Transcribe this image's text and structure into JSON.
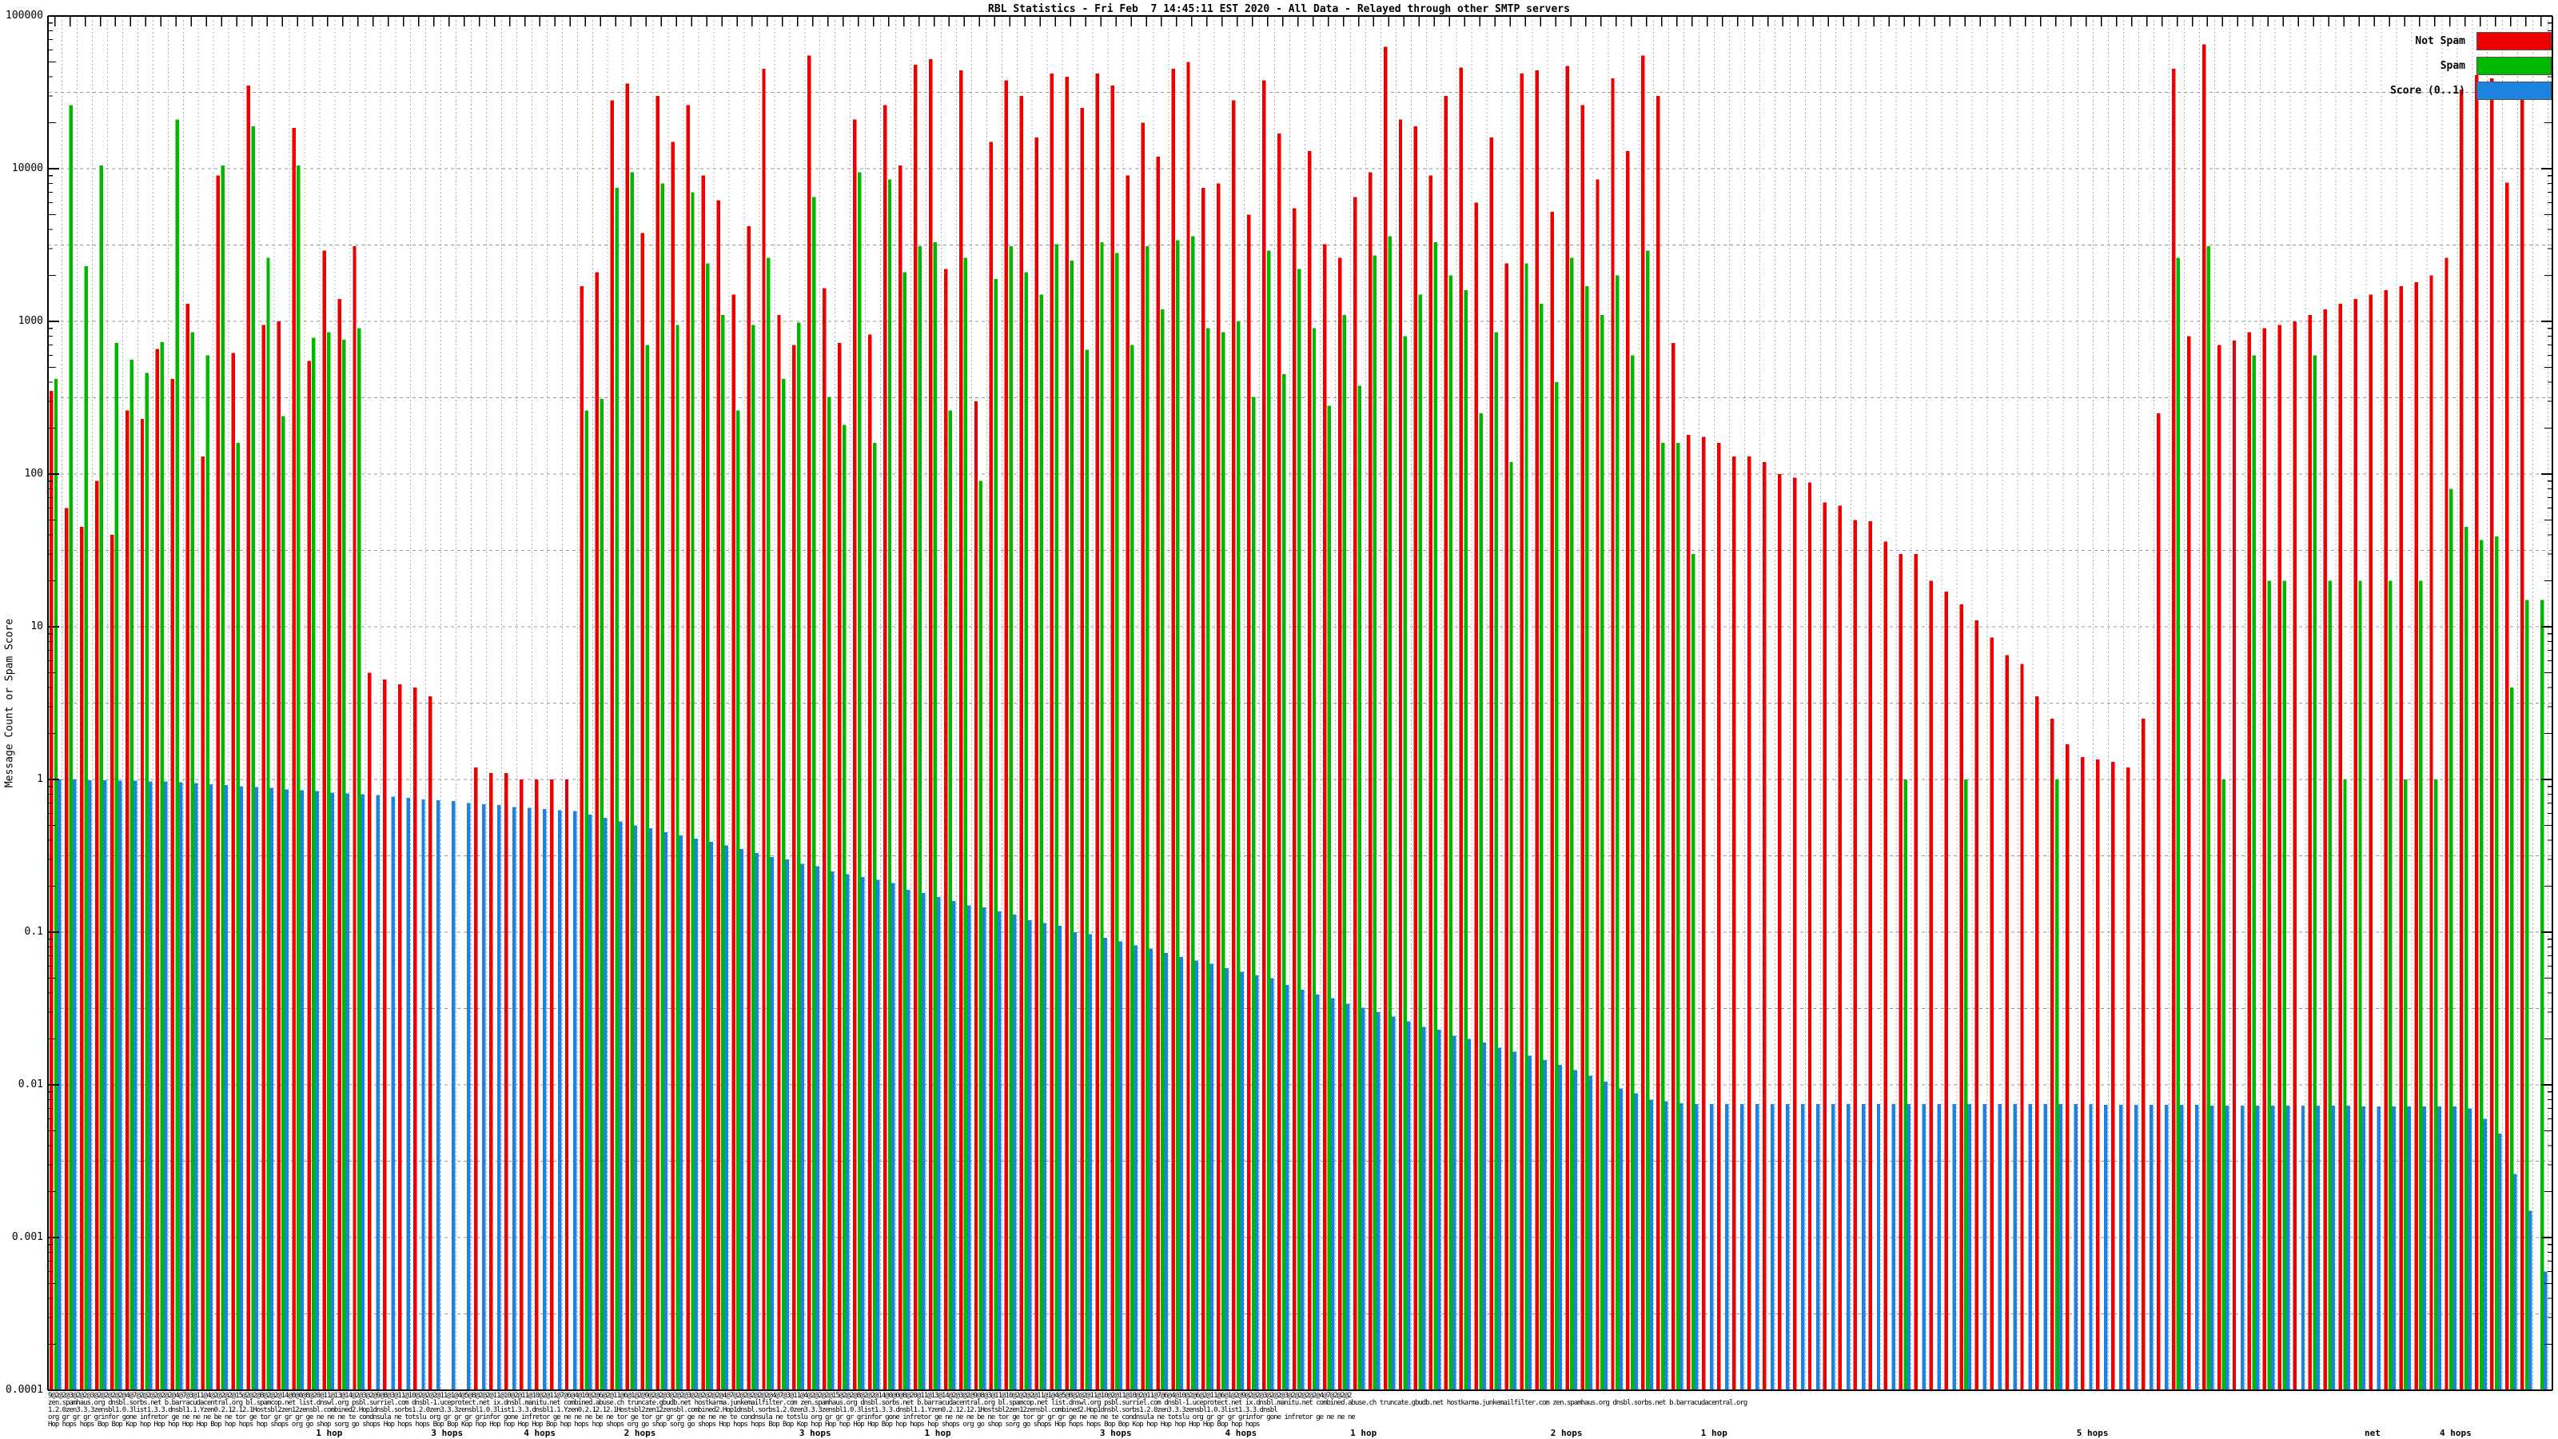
{
  "title": "RBL Statistics - Fri Feb  7 14:45:11 EST 2020 - All Data - Relayed through other SMTP servers",
  "legend": {
    "items": [
      {
        "label": "Not Spam",
        "color": "#ee0000"
      },
      {
        "label": "Spam",
        "color": "#00b800"
      },
      {
        "label": "Score (0..1)",
        "color": "#1e82e0"
      }
    ]
  },
  "chart_data": {
    "type": "bar",
    "title": "RBL Statistics - Fri Feb  7 14:45:11 EST 2020 - All Data - Relayed through other SMTP servers",
    "xlabel": "",
    "ylabel": "Message Count or Spam Score",
    "y_scale": "log",
    "ylim": [
      0.0001,
      100000
    ],
    "y_tick_labels": [
      "100000",
      "10000",
      "1000",
      "100",
      "10",
      "1",
      "0.1",
      "0.01",
      "0.001",
      "0.0001"
    ],
    "grid": "dotted horizontal at half-decades, dotted vertical per bar group",
    "legend_position": "top-right",
    "series_names": [
      "Not Spam",
      "Spam",
      "Score (0..1)"
    ],
    "colors": {
      "not_spam": "#ee0000",
      "spam": "#00b800",
      "score": "#1e82e0"
    },
    "note": "values estimated from log axis; each group = [not_spam, spam, score]",
    "groups": [
      [
        350,
        420,
        1.0
      ],
      [
        60,
        26000,
        1.0
      ],
      [
        45,
        2300,
        0.99
      ],
      [
        90,
        10500,
        0.99
      ],
      [
        40,
        720,
        0.98
      ],
      [
        260,
        560,
        0.98
      ],
      [
        230,
        460,
        0.97
      ],
      [
        660,
        730,
        0.97
      ],
      [
        420,
        21000,
        0.96
      ],
      [
        1300,
        850,
        0.95
      ],
      [
        130,
        600,
        0.93
      ],
      [
        9000,
        10500,
        0.92
      ],
      [
        620,
        160,
        0.9
      ],
      [
        35000,
        19000,
        0.89
      ],
      [
        950,
        2600,
        0.88
      ],
      [
        1000,
        240,
        0.86
      ],
      [
        18500,
        10500,
        0.85
      ],
      [
        550,
        780,
        0.84
      ],
      [
        2900,
        850,
        0.82
      ],
      [
        1400,
        760,
        0.81
      ],
      [
        3100,
        900,
        0.8
      ],
      [
        5,
        null,
        0.79
      ],
      [
        4.5,
        null,
        0.77
      ],
      [
        4.2,
        null,
        0.76
      ],
      [
        4,
        null,
        0.74
      ],
      [
        3.5,
        null,
        0.73
      ],
      [
        null,
        null,
        0.72
      ],
      [
        null,
        null,
        0.7
      ],
      [
        1.2,
        null,
        0.69
      ],
      [
        1.1,
        null,
        0.68
      ],
      [
        1.1,
        null,
        0.66
      ],
      [
        1.0,
        null,
        0.65
      ],
      [
        1.0,
        null,
        0.64
      ],
      [
        1.0,
        null,
        0.63
      ],
      [
        1.0,
        null,
        0.62
      ],
      [
        1700,
        260,
        0.59
      ],
      [
        2100,
        310,
        0.56
      ],
      [
        28000,
        7500,
        0.53
      ],
      [
        36000,
        9500,
        0.5
      ],
      [
        3800,
        700,
        0.48
      ],
      [
        30000,
        8000,
        0.45
      ],
      [
        15000,
        950,
        0.43
      ],
      [
        26000,
        7000,
        0.41
      ],
      [
        9000,
        2400,
        0.39
      ],
      [
        6200,
        1100,
        0.37
      ],
      [
        1500,
        260,
        0.35
      ],
      [
        4200,
        950,
        0.33
      ],
      [
        45000,
        2600,
        0.31
      ],
      [
        1100,
        420,
        0.3
      ],
      [
        700,
        980,
        0.28
      ],
      [
        55000,
        6500,
        0.27
      ],
      [
        1650,
        320,
        0.25
      ],
      [
        720,
        210,
        0.24
      ],
      [
        21000,
        9500,
        0.23
      ],
      [
        820,
        160,
        0.22
      ],
      [
        26000,
        8500,
        0.21
      ],
      [
        10500,
        2100,
        0.19
      ],
      [
        48000,
        3100,
        0.18
      ],
      [
        52000,
        3300,
        0.17
      ],
      [
        2200,
        260,
        0.16
      ],
      [
        44000,
        2600,
        0.15
      ],
      [
        300,
        90,
        0.145
      ],
      [
        15000,
        1900,
        0.137
      ],
      [
        38000,
        3100,
        0.13
      ],
      [
        30000,
        2100,
        0.12
      ],
      [
        16000,
        1500,
        0.115
      ],
      [
        42000,
        3200,
        0.11
      ],
      [
        40000,
        2500,
        0.1
      ],
      [
        25000,
        650,
        0.097
      ],
      [
        42000,
        3300,
        0.092
      ],
      [
        35000,
        2800,
        0.087
      ],
      [
        9000,
        700,
        0.082
      ],
      [
        20000,
        3100,
        0.078
      ],
      [
        12000,
        1200,
        0.073
      ],
      [
        45000,
        3400,
        0.069
      ],
      [
        50000,
        3600,
        0.065
      ],
      [
        7500,
        900,
        0.062
      ],
      [
        8000,
        850,
        0.058
      ],
      [
        28000,
        1000,
        0.055
      ],
      [
        5000,
        320,
        0.052
      ],
      [
        38000,
        2900,
        0.05
      ],
      [
        17000,
        450,
        0.045
      ],
      [
        5500,
        2200,
        0.042
      ],
      [
        13000,
        900,
        0.039
      ],
      [
        3200,
        280,
        0.037
      ],
      [
        2600,
        1100,
        0.034
      ],
      [
        6500,
        380,
        0.032
      ],
      [
        9500,
        2700,
        0.03
      ],
      [
        63000,
        3600,
        0.028
      ],
      [
        21000,
        800,
        0.026
      ],
      [
        19000,
        1500,
        0.024
      ],
      [
        9000,
        3300,
        0.023
      ],
      [
        30000,
        2000,
        0.021
      ],
      [
        46000,
        1600,
        0.02
      ],
      [
        6000,
        250,
        0.019
      ],
      [
        16000,
        850,
        0.0175
      ],
      [
        2400,
        120,
        0.0165
      ],
      [
        42000,
        2400,
        0.0155
      ],
      [
        44000,
        1300,
        0.0145
      ],
      [
        5200,
        400,
        0.0135
      ],
      [
        47000,
        2600,
        0.0125
      ],
      [
        26000,
        1700,
        0.0115
      ],
      [
        8500,
        1100,
        0.0105
      ],
      [
        39000,
        2000,
        0.0095
      ],
      [
        13000,
        600,
        0.0088
      ],
      [
        55000,
        2900,
        0.008
      ],
      [
        30000,
        160,
        0.0078
      ],
      [
        720,
        160,
        0.0076
      ],
      [
        180,
        30,
        0.0075
      ],
      [
        175,
        null,
        0.0075
      ],
      [
        160,
        null,
        0.0075
      ],
      [
        130,
        null,
        0.0075
      ],
      [
        130,
        null,
        0.0075
      ],
      [
        120,
        null,
        0.0075
      ],
      [
        100,
        null,
        0.0075
      ],
      [
        95,
        null,
        0.0075
      ],
      [
        88,
        null,
        0.0075
      ],
      [
        65,
        null,
        0.0075
      ],
      [
        62,
        null,
        0.0075
      ],
      [
        50,
        null,
        0.0075
      ],
      [
        49,
        null,
        0.0075
      ],
      [
        36,
        null,
        0.0075
      ],
      [
        30,
        1,
        0.0075
      ],
      [
        30,
        null,
        0.0075
      ],
      [
        20,
        null,
        0.0075
      ],
      [
        17,
        null,
        0.0075
      ],
      [
        14,
        1,
        0.0075
      ],
      [
        11,
        null,
        0.0075
      ],
      [
        8.5,
        null,
        0.0075
      ],
      [
        6.5,
        null,
        0.0075
      ],
      [
        5.7,
        null,
        0.0075
      ],
      [
        3.5,
        null,
        0.0075
      ],
      [
        2.5,
        1,
        0.0075
      ],
      [
        1.7,
        null,
        0.0075
      ],
      [
        1.4,
        null,
        0.0075
      ],
      [
        1.35,
        null,
        0.0074
      ],
      [
        1.3,
        null,
        0.0074
      ],
      [
        1.2,
        null,
        0.0074
      ],
      [
        2.5,
        null,
        0.0074
      ],
      [
        250,
        null,
        0.0074
      ],
      [
        45000,
        2600,
        0.0074
      ],
      [
        800,
        null,
        0.0074
      ],
      [
        65000,
        3100,
        0.0073
      ],
      [
        700,
        1,
        0.0073
      ],
      [
        750,
        null,
        0.0073
      ],
      [
        850,
        600,
        0.0073
      ],
      [
        900,
        20,
        0.0073
      ],
      [
        950,
        20,
        0.0073
      ],
      [
        1000,
        null,
        0.0073
      ],
      [
        1100,
        600,
        0.0073
      ],
      [
        1200,
        20,
        0.0073
      ],
      [
        1300,
        1,
        0.0073
      ],
      [
        1400,
        20,
        0.0072
      ],
      [
        1500,
        null,
        0.0072
      ],
      [
        1600,
        20,
        0.0072
      ],
      [
        1700,
        1,
        0.0072
      ],
      [
        1800,
        20,
        0.0072
      ],
      [
        2000,
        1,
        0.0072
      ],
      [
        2600,
        80,
        0.0072
      ],
      [
        33000,
        45,
        0.007
      ],
      [
        41000,
        37,
        0.006
      ],
      [
        39000,
        39,
        0.0048
      ],
      [
        8100,
        4,
        0.0026
      ],
      [
        36000,
        15,
        0.0015
      ],
      [
        null,
        15,
        0.0006
      ]
    ]
  },
  "x_axis": {
    "smear_lines": [
      "9@2@2@3@2@2@3@2@2@2@2@4@7@2@2@2@2@2@4@7@3@11@4@2@2@2@15@2@2@8@2@2@14@0@0@8@20@11@13@14@2@3@2@9@8@3@11@10@2@2@2@11@1@4@5@8@2@2@11@10@2@11@10@2@11@7@6@4@10@2@6@2@11@6@1@2@9@2@2@3@2@2@3@2@2@2@2@4@7@2@2@2@2@2@4@7@3@11@4@2@2@2@15@2@2@8@2@2@14@0@0@8@20@11@13@14@2@3@2@9@8@3@11@10@2@2@2@11@1@4@5@8@2@2@11@10@2@11@10@2@11@7@6@4@10@2@6@2@11@6@1@2@9@2@2@3@2@2@3@2@2@2@2@4@7@2@2@2",
      "zen.spamhaus.org dnsbl.sorbs.net b.barracudacentral.org bl.spamcop.net list.dnswl.org psbl.surriel.com dnsbl-1.uceprotect.net ix.dnsbl.manitu.net combined.abuse.ch truncate.gbudb.net hostkarma.junkemailfilter.com zen.spamhaus.org dnsbl.sorbs.net b.barracudacentral.org bl.spamcop.net list.dnswl.org psbl.surriel.com dnsbl-1.uceprotect.net ix.dnsbl.manitu.net combined.abuse.ch truncate.gbudb.net hostkarma.junkemailfilter.com zen.spamhaus.org dnsbl.sorbs.net b.barracudacentral.org",
      "1.2.0zen3.3.3zensbl1.0.3list1.3.3.dnsbl1.1.Yzen0.2.12.12.1Hostsbl2zen12zensbl.combined2.Hop1dnsbl.sorbs1.2.0zen3.3.3zensbl1.0.3list1.3.3.dnsbl1.1.Yzen0.2.12.12.1Hostsbl2zen12zensbl.combined2.Hop1dnsbl.sorbs1.2.0zen3.3.3zensbl1.0.3list1.3.3.dnsbl1.1.Yzen0.2.12.12.1Hostsbl2zen12zensbl.combined2.Hop1dnsbl.sorbs1.2.0zen3.3.3zensbl1.0.3list1.3.3.dnsbl",
      "org gr gr gr grinfor gone infretor ge ne ne ne be ne tor ge tor gr gr gr ge ne ne ne te condnsula ne totslu org gr gr gr grinfor gone infretor ge ne ne ne be ne tor ge tor gr gr gr ge ne ne ne te condnsula ne totslu org gr gr gr grinfor gone infretor ge ne ne ne be ne tor ge tor gr gr gr ge ne ne ne te condnsula ne totslu org gr gr gr grinfor gone infretor ge ne ne ne",
      "Hop hops hops Bop Bop Kop hop Hop hop Hop Hop Bop hop hops hop shops org go shop sorg go shops Hop hops hops Bop Bop Kop hop Hop hop Hop Hop Bop hop hops hop shops org go shop sorg go shops Hop hops hops Bop Bop Kop hop Hop hop Hop Hop Bop hop hops hop shops org go shop sorg go shops Hop hops hops Bop Bop Kop hop Hop hop Hop Hop Bop hop hops"
    ],
    "readable_fragments": [
      {
        "t": "1 hop",
        "x": 0.107
      },
      {
        "t": "3 hops",
        "x": 0.153
      },
      {
        "t": "4 hops",
        "x": 0.19
      },
      {
        "t": "2 hops",
        "x": 0.23
      },
      {
        "t": "3 hops",
        "x": 0.3
      },
      {
        "t": "1 hop",
        "x": 0.35
      },
      {
        "t": "3 hops",
        "x": 0.42
      },
      {
        "t": "4 hops",
        "x": 0.47
      },
      {
        "t": "1 hop",
        "x": 0.52
      },
      {
        "t": "2 hops",
        "x": 0.6
      },
      {
        "t": "1 hop",
        "x": 0.66
      },
      {
        "t": "5 hops",
        "x": 0.81
      },
      {
        "t": "net",
        "x": 0.925
      },
      {
        "t": "4 hops",
        "x": 0.955
      }
    ]
  }
}
